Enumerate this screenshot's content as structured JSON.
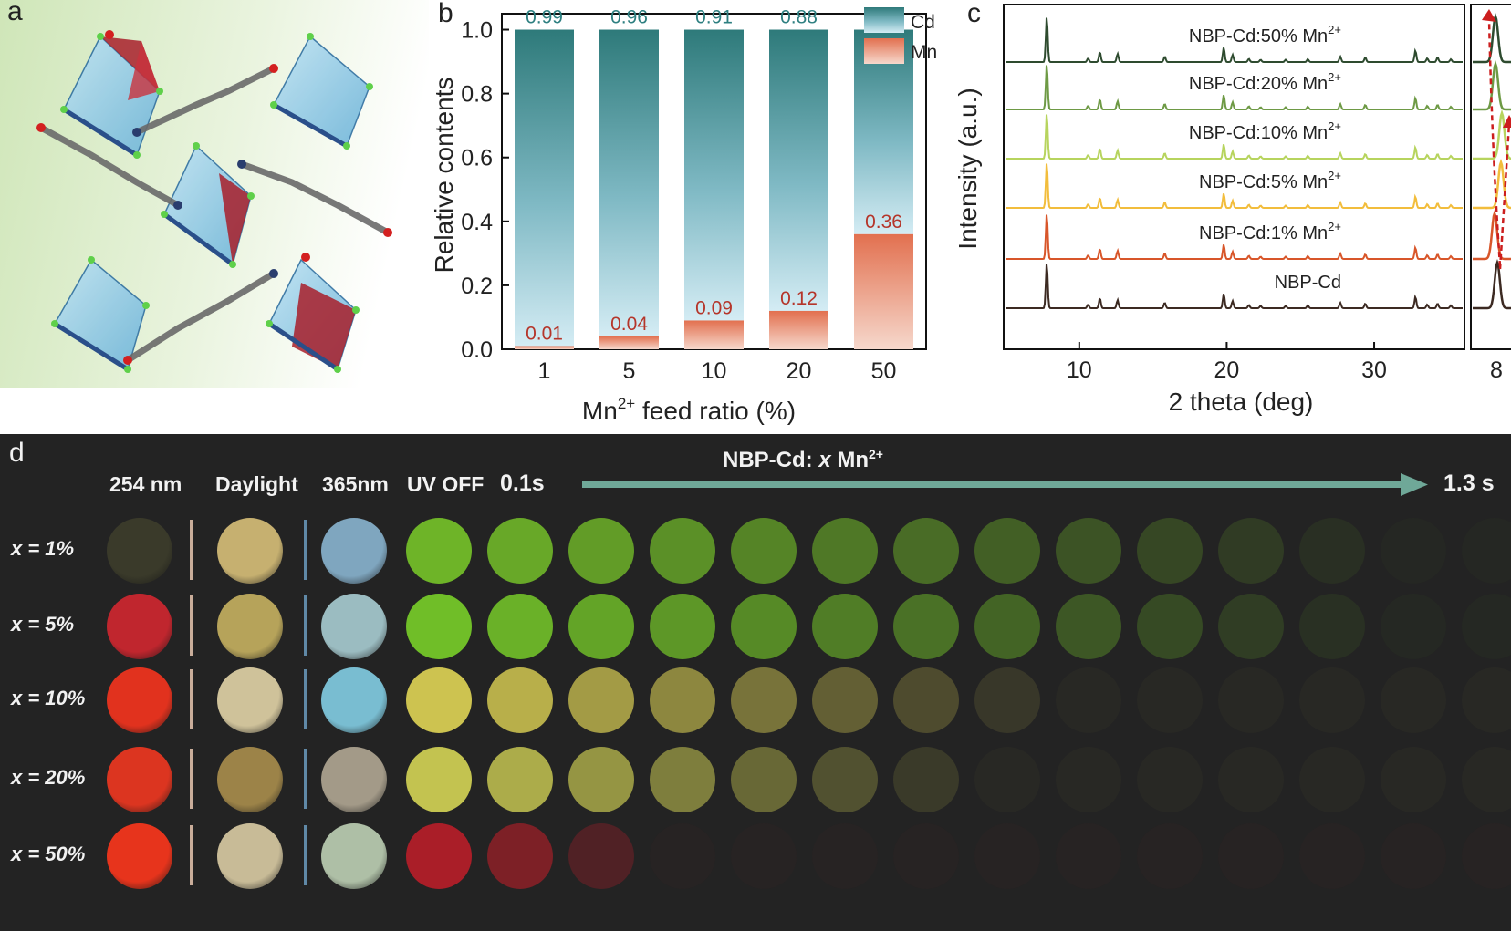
{
  "panel_a": {
    "letter": "a"
  },
  "panel_b": {
    "letter": "b",
    "legend": [
      "Cd",
      "Mn"
    ],
    "ylabel": "Relative contents",
    "xlabel_main": "Mn",
    "xlabel_sup": "2+",
    "xlabel_rest": " feed ratio (%)"
  },
  "panel_c": {
    "letter": "c",
    "ylabel": "Intensity (a.u.)",
    "xlabel": "2 theta (deg)",
    "traces": [
      {
        "label": "NBP-Cd:50% Mn",
        "sup": "2+",
        "color": "#2e4b2f"
      },
      {
        "label": "NBP-Cd:20% Mn",
        "sup": "2+",
        "color": "#6e9a45"
      },
      {
        "label": "NBP-Cd:10% Mn",
        "sup": "2+",
        "color": "#b7d45e"
      },
      {
        "label": "NBP-Cd:5% Mn",
        "sup": "2+",
        "color": "#f2bd3c"
      },
      {
        "label": "NBP-Cd:1% Mn",
        "sup": "2+",
        "color": "#d8562a"
      },
      {
        "label": "NBP-Cd",
        "sup": "",
        "color": "#3c2a22"
      }
    ],
    "xticks_main": [
      "10",
      "20",
      "30"
    ],
    "xticks_inset": [
      "8"
    ]
  },
  "panel_d": {
    "letter": "d",
    "title_main": "NBP-Cd: ",
    "title_x": "x",
    "title_mn": " Mn",
    "title_sup": "2+",
    "col_254": "254 nm",
    "col_daylight": "Daylight",
    "col_365": "365nm",
    "col_uvoff": "UV OFF",
    "time_start": "0.1s",
    "time_end": "1.3 s",
    "rows": [
      {
        "label": "x = 1%"
      },
      {
        "label": "x = 5%"
      },
      {
        "label": "x = 10%"
      },
      {
        "label": "x = 20%"
      },
      {
        "label": "x = 50%"
      }
    ]
  },
  "chart_data": {
    "type": "bar",
    "categories": [
      "1",
      "5",
      "10",
      "20",
      "50"
    ],
    "series": [
      {
        "name": "Cd",
        "values": [
          0.99,
          0.96,
          0.91,
          0.88,
          0.64
        ]
      },
      {
        "name": "Mn",
        "values": [
          0.01,
          0.04,
          0.09,
          0.12,
          0.36
        ]
      }
    ],
    "stacked": true,
    "xlabel": "Mn2+ feed ratio (%)",
    "ylabel": "Relative contents",
    "ylim": [
      0,
      1.05
    ],
    "yticks": [
      "0.0",
      "0.2",
      "0.4",
      "0.6",
      "0.8",
      "1.0"
    ],
    "legend": "top-right",
    "colors": {
      "Cd": "#3f8a8a",
      "Mn": "#e8876f"
    }
  }
}
